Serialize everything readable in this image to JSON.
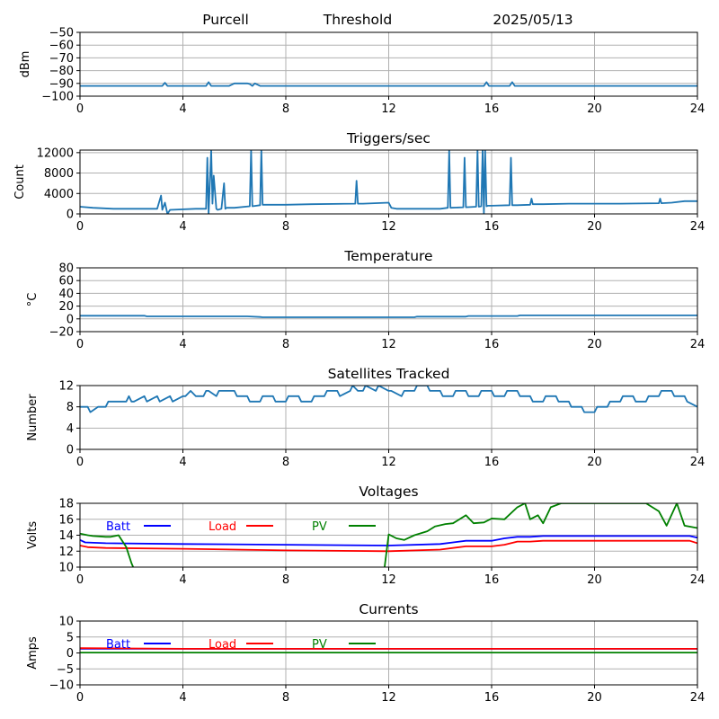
{
  "header": {
    "site": "Purcell",
    "label": "Threshold",
    "date": "2025/05/13"
  },
  "chart_data": [
    {
      "type": "line",
      "title": "",
      "xlabel": "",
      "ylabel": "dBm",
      "xlim": [
        0,
        24
      ],
      "ylim": [
        -100,
        -50
      ],
      "xticks": [
        0,
        4,
        8,
        12,
        16,
        20,
        24
      ],
      "yticks": [
        -100,
        -90,
        -80,
        -70,
        -60,
        -50
      ],
      "grid": true,
      "series": [
        {
          "name": "",
          "color": "#1f77b4",
          "x": [
            0,
            1,
            2,
            3.2,
            3.3,
            3.4,
            3.5,
            4,
            4.9,
            5.0,
            5.1,
            5.3,
            5.5,
            5.8,
            6.0,
            6.1,
            6.3,
            6.5,
            6.6,
            6.7,
            6.8,
            7.0,
            8,
            10,
            12,
            14,
            15.7,
            15.8,
            15.9,
            16,
            16.7,
            16.8,
            16.9,
            17.5,
            20,
            22,
            24
          ],
          "y": [
            -92,
            -92,
            -92,
            -92,
            -89.5,
            -92,
            -92,
            -92,
            -92,
            -89,
            -92,
            -92,
            -92,
            -92,
            -90,
            -90,
            -90,
            -90,
            -90.5,
            -92,
            -90,
            -92,
            -92,
            -92,
            -92,
            -92,
            -92,
            -89,
            -92,
            -92,
            -92,
            -89,
            -92,
            -92,
            -92,
            -92,
            -92
          ]
        }
      ]
    },
    {
      "type": "line",
      "title": "Triggers/sec",
      "xlabel": "",
      "ylabel": "Count",
      "xlim": [
        0,
        24
      ],
      "ylim": [
        0,
        12500
      ],
      "xticks": [
        0,
        4,
        8,
        12,
        16,
        20,
        24
      ],
      "yticks": [
        0,
        4000,
        8000,
        12000
      ],
      "grid": true,
      "series": [
        {
          "name": "",
          "color": "#1f77b4",
          "x": [
            0,
            0.5,
            1.3,
            1.4,
            3.0,
            3.15,
            3.2,
            3.3,
            3.4,
            3.5,
            4.5,
            4.9,
            4.95,
            5.0,
            5.1,
            5.15,
            5.2,
            5.3,
            5.35,
            5.5,
            5.6,
            5.65,
            5.7,
            6.0,
            6.6,
            6.65,
            6.7,
            7.0,
            7.05,
            7.1,
            8,
            9,
            10.7,
            10.75,
            10.8,
            11,
            12,
            12.1,
            12.3,
            14,
            14.3,
            14.35,
            14.4,
            14.9,
            14.95,
            15,
            15.4,
            15.45,
            15.5,
            15.6,
            15.65,
            15.7,
            15.75,
            15.8,
            15.85,
            16,
            16.7,
            16.75,
            16.8,
            17,
            17.5,
            17.55,
            17.6,
            18,
            19,
            20,
            21,
            22.5,
            22.55,
            22.6,
            23,
            23.5,
            24
          ],
          "y": [
            1400,
            1200,
            1000,
            1000,
            1000,
            3600,
            800,
            2200,
            0,
            800,
            1000,
            1000,
            11000,
            0,
            12500,
            2000,
            7500,
            1000,
            800,
            1000,
            6000,
            1000,
            1200,
            1200,
            1500,
            12500,
            1500,
            1700,
            12500,
            1800,
            1800,
            1900,
            2000,
            6500,
            2000,
            2000,
            2200,
            1200,
            1000,
            1000,
            1200,
            12500,
            1200,
            1300,
            11000,
            1300,
            1400,
            12500,
            1400,
            1500,
            12500,
            0,
            12500,
            1500,
            1600,
            1600,
            1700,
            11000,
            1700,
            1700,
            1800,
            3000,
            1900,
            1900,
            2000,
            2000,
            2000,
            2100,
            3000,
            2100,
            2200,
            2500,
            2500
          ]
        }
      ]
    },
    {
      "type": "line",
      "title": "Temperature",
      "xlabel": "",
      "ylabel": "°C",
      "xlim": [
        0,
        24
      ],
      "ylim": [
        -20,
        80
      ],
      "xticks": [
        0,
        4,
        8,
        12,
        16,
        20,
        24
      ],
      "yticks": [
        -20,
        0,
        20,
        40,
        60,
        80
      ],
      "grid": true,
      "series": [
        {
          "name": "",
          "color": "#1f77b4",
          "x": [
            0,
            2.5,
            2.6,
            6.5,
            7.0,
            7.1,
            12,
            13.0,
            13.1,
            15.0,
            15.1,
            17.0,
            17.1,
            20,
            24
          ],
          "y": [
            5,
            5,
            4,
            4,
            3,
            2.5,
            2.5,
            2.5,
            3.5,
            3.5,
            4.5,
            4.5,
            5.5,
            5.5,
            5.5
          ]
        }
      ]
    },
    {
      "type": "line",
      "title": "Satellites Tracked",
      "xlabel": "",
      "ylabel": "Number",
      "xlim": [
        0,
        24
      ],
      "ylim": [
        0,
        12
      ],
      "xticks": [
        0,
        4,
        8,
        12,
        16,
        20,
        24
      ],
      "yticks": [
        0,
        4,
        8,
        12
      ],
      "grid": true,
      "series": [
        {
          "name": "",
          "color": "#1f77b4",
          "x": [
            0,
            0.3,
            0.4,
            0.7,
            1.0,
            1.1,
            1.8,
            1.9,
            2.0,
            2.1,
            2.5,
            2.6,
            3.0,
            3.1,
            3.5,
            3.6,
            4.0,
            4.1,
            4.3,
            4.5,
            4.8,
            4.9,
            5.0,
            5.3,
            5.4,
            6.0,
            6.1,
            6.5,
            6.6,
            7.0,
            7.1,
            7.5,
            7.6,
            8.0,
            8.1,
            8.5,
            8.6,
            9.0,
            9.1,
            9.5,
            9.6,
            10.0,
            10.1,
            10.5,
            10.6,
            10.8,
            11.0,
            11.1,
            11.5,
            11.6,
            12.0,
            12.1,
            12.5,
            12.6,
            13.0,
            13.1,
            13.5,
            13.6,
            14.0,
            14.1,
            14.5,
            14.6,
            15.0,
            15.1,
            15.5,
            15.6,
            16.0,
            16.1,
            16.5,
            16.6,
            17.0,
            17.1,
            17.5,
            17.6,
            18.0,
            18.1,
            18.5,
            18.6,
            19.0,
            19.1,
            19.5,
            19.6,
            20.0,
            20.1,
            20.5,
            20.6,
            21.0,
            21.1,
            21.5,
            21.6,
            22.0,
            22.1,
            22.5,
            22.6,
            23.0,
            23.1,
            23.5,
            23.6,
            24
          ],
          "y": [
            8,
            8,
            7,
            8,
            8,
            9,
            9,
            10,
            9,
            9,
            10,
            9,
            10,
            9,
            10,
            9,
            10,
            10,
            11,
            10,
            10,
            11,
            11,
            10,
            11,
            11,
            10,
            10,
            9,
            9,
            10,
            10,
            9,
            9,
            10,
            10,
            9,
            9,
            10,
            10,
            11,
            11,
            10,
            11,
            12,
            11,
            11,
            12,
            11,
            12,
            11,
            11,
            10,
            11,
            11,
            12,
            12,
            11,
            11,
            10,
            10,
            11,
            11,
            10,
            10,
            11,
            11,
            10,
            10,
            11,
            11,
            10,
            10,
            9,
            9,
            10,
            10,
            9,
            9,
            8,
            8,
            7,
            7,
            8,
            8,
            9,
            9,
            10,
            10,
            9,
            9,
            10,
            10,
            11,
            11,
            10,
            10,
            9,
            8
          ]
        }
      ]
    },
    {
      "type": "line",
      "title": "Voltages",
      "xlabel": "",
      "ylabel": "Volts",
      "xlim": [
        0,
        24
      ],
      "ylim": [
        10,
        18
      ],
      "xticks": [
        0,
        4,
        8,
        12,
        16,
        20,
        24
      ],
      "yticks": [
        10,
        12,
        14,
        16,
        18
      ],
      "grid": true,
      "series": [
        {
          "name": "Batt",
          "color": "#0000ff",
          "x": [
            0,
            0.2,
            1,
            4,
            8,
            12,
            14,
            15,
            16,
            16.5,
            17,
            17.5,
            18,
            20,
            22,
            23,
            23.7,
            24
          ],
          "y": [
            13.4,
            13.1,
            13.0,
            12.9,
            12.8,
            12.7,
            12.9,
            13.3,
            13.3,
            13.6,
            13.8,
            13.8,
            13.9,
            13.9,
            13.9,
            13.9,
            13.9,
            13.7
          ]
        },
        {
          "name": "Load",
          "color": "#ff0000",
          "x": [
            0,
            0.3,
            1,
            4,
            8,
            12,
            14,
            15,
            16,
            16.5,
            17,
            17.5,
            18,
            20,
            22,
            23,
            23.7,
            24
          ],
          "y": [
            12.7,
            12.5,
            12.4,
            12.3,
            12.1,
            12.0,
            12.2,
            12.6,
            12.6,
            12.8,
            13.2,
            13.2,
            13.3,
            13.3,
            13.3,
            13.3,
            13.3,
            13.0
          ]
        },
        {
          "name": "PV",
          "color": "#008000",
          "x": [
            0,
            0.3,
            0.5,
            1.0,
            1.2,
            1.5,
            1.8,
            2.0,
            2.2,
            11.8,
            12.0,
            12.3,
            12.6,
            13.0,
            13.5,
            13.8,
            14.2,
            14.5,
            15.0,
            15.3,
            15.7,
            16.0,
            16.5,
            17.0,
            17.3,
            17.5,
            17.8,
            18.0,
            18.3,
            18.7,
            19.5,
            20,
            22,
            22.5,
            22.8,
            23.2,
            23.5,
            24
          ],
          "y": [
            14.2,
            14.0,
            13.9,
            13.8,
            13.8,
            14.0,
            12.5,
            10.5,
            9.0,
            9.0,
            14.1,
            13.6,
            13.4,
            14.0,
            14.5,
            15.1,
            15.4,
            15.5,
            16.5,
            15.5,
            15.6,
            16.1,
            16.0,
            17.5,
            18.0,
            16.0,
            16.5,
            15.5,
            17.5,
            18.0,
            18.0,
            18.0,
            18.0,
            17.0,
            15.2,
            18.0,
            15.2,
            14.9
          ]
        }
      ]
    },
    {
      "type": "line",
      "title": "Currents",
      "xlabel": "",
      "ylabel": "Amps",
      "xlim": [
        0,
        24
      ],
      "ylim": [
        -10,
        10
      ],
      "xticks": [
        0,
        4,
        8,
        12,
        16,
        20,
        24
      ],
      "yticks": [
        -10,
        -5,
        0,
        5,
        10
      ],
      "grid": true,
      "series": [
        {
          "name": "Batt",
          "color": "#0000ff",
          "x": [
            0,
            24
          ],
          "y": [
            1.3,
            1.3
          ]
        },
        {
          "name": "Load",
          "color": "#ff0000",
          "x": [
            0,
            2,
            4,
            12,
            24
          ],
          "y": [
            1.5,
            1.4,
            1.3,
            1.3,
            1.3
          ]
        },
        {
          "name": "PV",
          "color": "#008000",
          "x": [
            0,
            24
          ],
          "y": [
            0.1,
            0.1
          ]
        }
      ]
    }
  ]
}
